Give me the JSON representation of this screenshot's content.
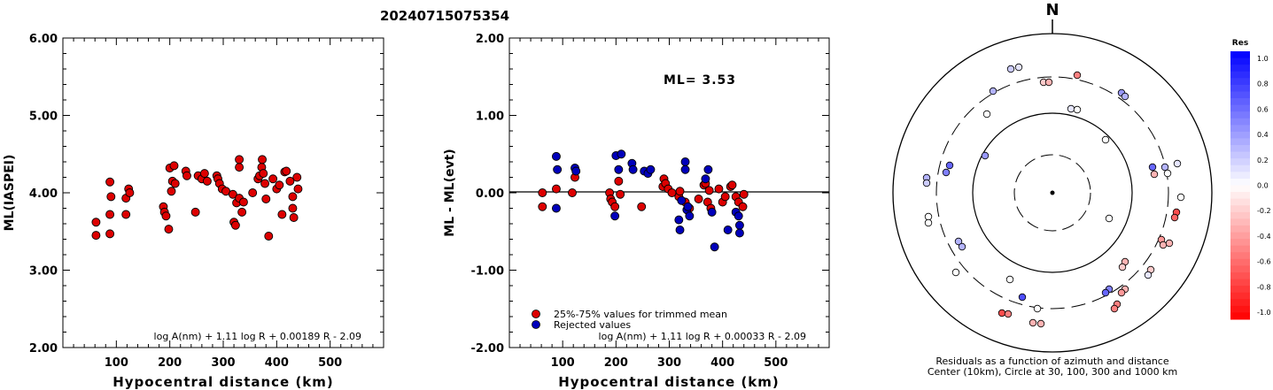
{
  "title": "20240715075354",
  "chart_data": [
    {
      "type": "scatter",
      "xlabel": "Hypocentral distance (km)",
      "ylabel": "ML(IASPEI)",
      "xlim": [
        0,
        600
      ],
      "ylim": [
        2.0,
        6.0
      ],
      "x_ticks": [
        "100",
        "200",
        "300",
        "400",
        "500"
      ],
      "y_ticks": [
        "2.00",
        "3.00",
        "4.00",
        "5.00",
        "6.00"
      ],
      "formula": "log A(nm) + 1.11 log R + 0.00189 R - 2.09",
      "series": [
        {
          "color": "#dd0000",
          "points": [
            [
              62,
              3.62
            ],
            [
              62,
              3.45
            ],
            [
              88,
              4.14
            ],
            [
              90,
              3.95
            ],
            [
              88,
              3.72
            ],
            [
              88,
              3.47
            ],
            [
              118,
              3.93
            ],
            [
              123,
              4.05
            ],
            [
              125,
              4.0
            ],
            [
              118,
              3.72
            ],
            [
              188,
              3.82
            ],
            [
              190,
              3.75
            ],
            [
              193,
              3.7
            ],
            [
              198,
              3.53
            ],
            [
              200,
              4.32
            ],
            [
              203,
              4.02
            ],
            [
              205,
              4.15
            ],
            [
              208,
              4.35
            ],
            [
              210,
              4.12
            ],
            [
              230,
              4.28
            ],
            [
              232,
              4.22
            ],
            [
              248,
              3.75
            ],
            [
              253,
              4.22
            ],
            [
              260,
              4.18
            ],
            [
              265,
              4.25
            ],
            [
              270,
              4.15
            ],
            [
              288,
              4.22
            ],
            [
              290,
              4.18
            ],
            [
              293,
              4.12
            ],
            [
              298,
              4.05
            ],
            [
              305,
              4.02
            ],
            [
              318,
              3.98
            ],
            [
              320,
              3.62
            ],
            [
              323,
              3.58
            ],
            [
              325,
              3.87
            ],
            [
              330,
              4.33
            ],
            [
              330,
              4.43
            ],
            [
              330,
              3.93
            ],
            [
              335,
              3.75
            ],
            [
              338,
              3.88
            ],
            [
              355,
              4.0
            ],
            [
              365,
              4.18
            ],
            [
              368,
              4.22
            ],
            [
              372,
              4.33
            ],
            [
              373,
              4.43
            ],
            [
              375,
              4.25
            ],
            [
              378,
              4.12
            ],
            [
              380,
              3.92
            ],
            [
              385,
              3.44
            ],
            [
              393,
              4.18
            ],
            [
              400,
              4.05
            ],
            [
              405,
              4.1
            ],
            [
              410,
              3.72
            ],
            [
              415,
              4.27
            ],
            [
              418,
              4.28
            ],
            [
              425,
              4.15
            ],
            [
              430,
              3.95
            ],
            [
              430,
              3.8
            ],
            [
              432,
              3.68
            ],
            [
              438,
              4.2
            ],
            [
              440,
              4.05
            ]
          ]
        }
      ]
    },
    {
      "type": "scatter",
      "xlabel": "Hypocentral distance (km)",
      "ylabel": "ML - ML(evt)",
      "xlim": [
        0,
        600
      ],
      "ylim": [
        -2.0,
        2.0
      ],
      "x_ticks": [
        "100",
        "200",
        "300",
        "400",
        "500"
      ],
      "y_ticks": [
        "-2.00",
        "-1.00",
        "0.00",
        "1.00",
        "2.00"
      ],
      "annotation": "ML= 3.53",
      "formula": "log A(nm) + 1.11 log R + 0.00033 R - 2.09",
      "legend": [
        "25%-75% values for trimmed mean",
        "Rejected values"
      ],
      "series": [
        {
          "name": "25%-75% values for trimmed mean",
          "color": "#dd0000",
          "points": [
            [
              62,
              0.0
            ],
            [
              62,
              -0.18
            ],
            [
              88,
              0.05
            ],
            [
              118,
              0.0
            ],
            [
              123,
              0.2
            ],
            [
              188,
              0.0
            ],
            [
              190,
              -0.08
            ],
            [
              193,
              -0.12
            ],
            [
              198,
              -0.18
            ],
            [
              205,
              0.15
            ],
            [
              208,
              -0.02
            ],
            [
              248,
              -0.18
            ],
            [
              288,
              0.08
            ],
            [
              290,
              0.18
            ],
            [
              293,
              0.12
            ],
            [
              298,
              0.05
            ],
            [
              305,
              0.0
            ],
            [
              318,
              -0.05
            ],
            [
              320,
              0.02
            ],
            [
              330,
              -0.12
            ],
            [
              338,
              -0.2
            ],
            [
              355,
              -0.08
            ],
            [
              365,
              0.1
            ],
            [
              368,
              0.12
            ],
            [
              372,
              -0.12
            ],
            [
              375,
              0.03
            ],
            [
              378,
              -0.2
            ],
            [
              393,
              0.05
            ],
            [
              400,
              -0.12
            ],
            [
              405,
              -0.05
            ],
            [
              415,
              0.08
            ],
            [
              418,
              0.1
            ],
            [
              425,
              -0.05
            ],
            [
              430,
              -0.12
            ],
            [
              438,
              -0.18
            ],
            [
              440,
              -0.02
            ]
          ]
        },
        {
          "name": "Rejected values",
          "color": "#0000bb",
          "points": [
            [
              88,
              0.47
            ],
            [
              90,
              0.3
            ],
            [
              88,
              -0.2
            ],
            [
              123,
              0.32
            ],
            [
              125,
              0.28
            ],
            [
              200,
              0.48
            ],
            [
              205,
              0.3
            ],
            [
              210,
              0.5
            ],
            [
              198,
              -0.3
            ],
            [
              230,
              0.38
            ],
            [
              232,
              0.3
            ],
            [
              253,
              0.28
            ],
            [
              260,
              0.25
            ],
            [
              265,
              0.3
            ],
            [
              318,
              -0.35
            ],
            [
              320,
              -0.48
            ],
            [
              323,
              -0.1
            ],
            [
              330,
              0.4
            ],
            [
              330,
              0.3
            ],
            [
              333,
              -0.22
            ],
            [
              335,
              -0.18
            ],
            [
              338,
              -0.3
            ],
            [
              368,
              0.18
            ],
            [
              373,
              0.3
            ],
            [
              380,
              -0.25
            ],
            [
              385,
              -0.7
            ],
            [
              410,
              -0.48
            ],
            [
              425,
              -0.25
            ],
            [
              430,
              -0.3
            ],
            [
              432,
              -0.42
            ],
            [
              432,
              -0.52
            ]
          ]
        }
      ]
    },
    {
      "type": "scatter",
      "caption_line1": "Residuals as a function of azimuth and distance",
      "caption_line2": "Center (10km), Circle at 30, 100, 300 and 1000 km",
      "north_label": "N",
      "colorbar_title": "Res",
      "colorbar_ticks": [
        "1.0",
        "0.8",
        "0.6",
        "0.4",
        "0.2",
        "0.0",
        "-0.2",
        "-0.4",
        "-0.6",
        "-0.8",
        "-1.0"
      ],
      "rings_km": [
        30,
        100,
        300,
        1000
      ],
      "stations": [
        [
          1141,
          78,
          0.2
        ],
        [
          1150,
          76,
          0.1
        ],
        [
          1178,
          93,
          -0.2
        ],
        [
          1184,
          93,
          -0.3
        ],
        [
          1216,
          85,
          -0.5
        ],
        [
          1121,
          103,
          0.3
        ],
        [
          1266,
          105,
          0.4
        ],
        [
          1270,
          109,
          0.3
        ],
        [
          1209,
          123,
          0.1
        ],
        [
          1216,
          124,
          0.0
        ],
        [
          1114,
          129,
          0.0
        ],
        [
          1248,
          158,
          0.0
        ],
        [
          1112,
          176,
          0.4
        ],
        [
          1072,
          187,
          0.6
        ],
        [
          1068,
          195,
          0.5
        ],
        [
          1301,
          189,
          0.6
        ],
        [
          1315,
          189,
          0.3
        ],
        [
          1303,
          197,
          -0.3
        ],
        [
          1329,
          185,
          0.1
        ],
        [
          1318,
          196,
          0.0
        ],
        [
          1046,
          201,
          0.3
        ],
        [
          1046,
          207,
          0.2
        ],
        [
          1333,
          223,
          0.0
        ],
        [
          1328,
          240,
          -0.7
        ],
        [
          1326,
          246,
          -0.6
        ],
        [
          1048,
          245,
          0.0
        ],
        [
          1048,
          252,
          0.0
        ],
        [
          1252,
          247,
          0.0
        ],
        [
          1082,
          273,
          0.3
        ],
        [
          1086,
          279,
          0.3
        ],
        [
          1311,
          271,
          -0.4
        ],
        [
          1313,
          277,
          -0.3
        ],
        [
          1320,
          275,
          -0.3
        ],
        [
          1299,
          305,
          -0.2
        ],
        [
          1296,
          311,
          0.1
        ],
        [
          1270,
          296,
          -0.3
        ],
        [
          1267,
          302,
          -0.2
        ],
        [
          1079,
          308,
          0.0
        ],
        [
          1140,
          316,
          0.0
        ],
        [
          1270,
          327,
          -0.3
        ],
        [
          1266,
          331,
          -0.4
        ],
        [
          1252,
          327,
          0.5
        ],
        [
          1248,
          331,
          0.6
        ],
        [
          1154,
          336,
          0.7
        ],
        [
          1261,
          344,
          -0.5
        ],
        [
          1258,
          349,
          -0.5
        ],
        [
          1171,
          349,
          0.0
        ],
        [
          1131,
          354,
          -0.7
        ],
        [
          1138,
          355,
          -0.5
        ],
        [
          1166,
          365,
          -0.3
        ],
        [
          1175,
          366,
          -0.3
        ]
      ]
    }
  ]
}
